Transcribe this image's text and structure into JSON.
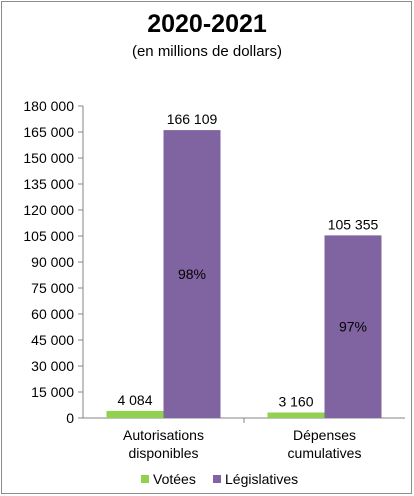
{
  "chart_data": {
    "type": "bar",
    "title": "2020-2021",
    "subtitle": "(en millions de dollars)",
    "categories": [
      [
        "Autorisations",
        "disponibles"
      ],
      [
        "Dépenses",
        "cumulatives"
      ]
    ],
    "series": [
      {
        "name": "Votées",
        "color": "#92d050",
        "values": [
          4084,
          3160
        ],
        "value_labels": [
          "4 084",
          "3 160"
        ],
        "pct_labels": [
          "",
          ""
        ]
      },
      {
        "name": "Législatives",
        "color": "#8064a2",
        "values": [
          166109,
          105355
        ],
        "value_labels": [
          "166 109",
          "105 355"
        ],
        "pct_labels": [
          "98%",
          "97%"
        ]
      }
    ],
    "ylim": [
      0,
      180000
    ],
    "yticks": [
      0,
      15000,
      30000,
      45000,
      60000,
      75000,
      90000,
      105000,
      120000,
      135000,
      150000,
      165000,
      180000
    ],
    "ytick_labels": [
      "0",
      "15 000",
      "30 000",
      "45 000",
      "60 000",
      "75 000",
      "90 000",
      "105 000",
      "120 000",
      "135 000",
      "150 000",
      "165 000",
      "180 000"
    ],
    "grid": false,
    "legend": "bottom"
  }
}
